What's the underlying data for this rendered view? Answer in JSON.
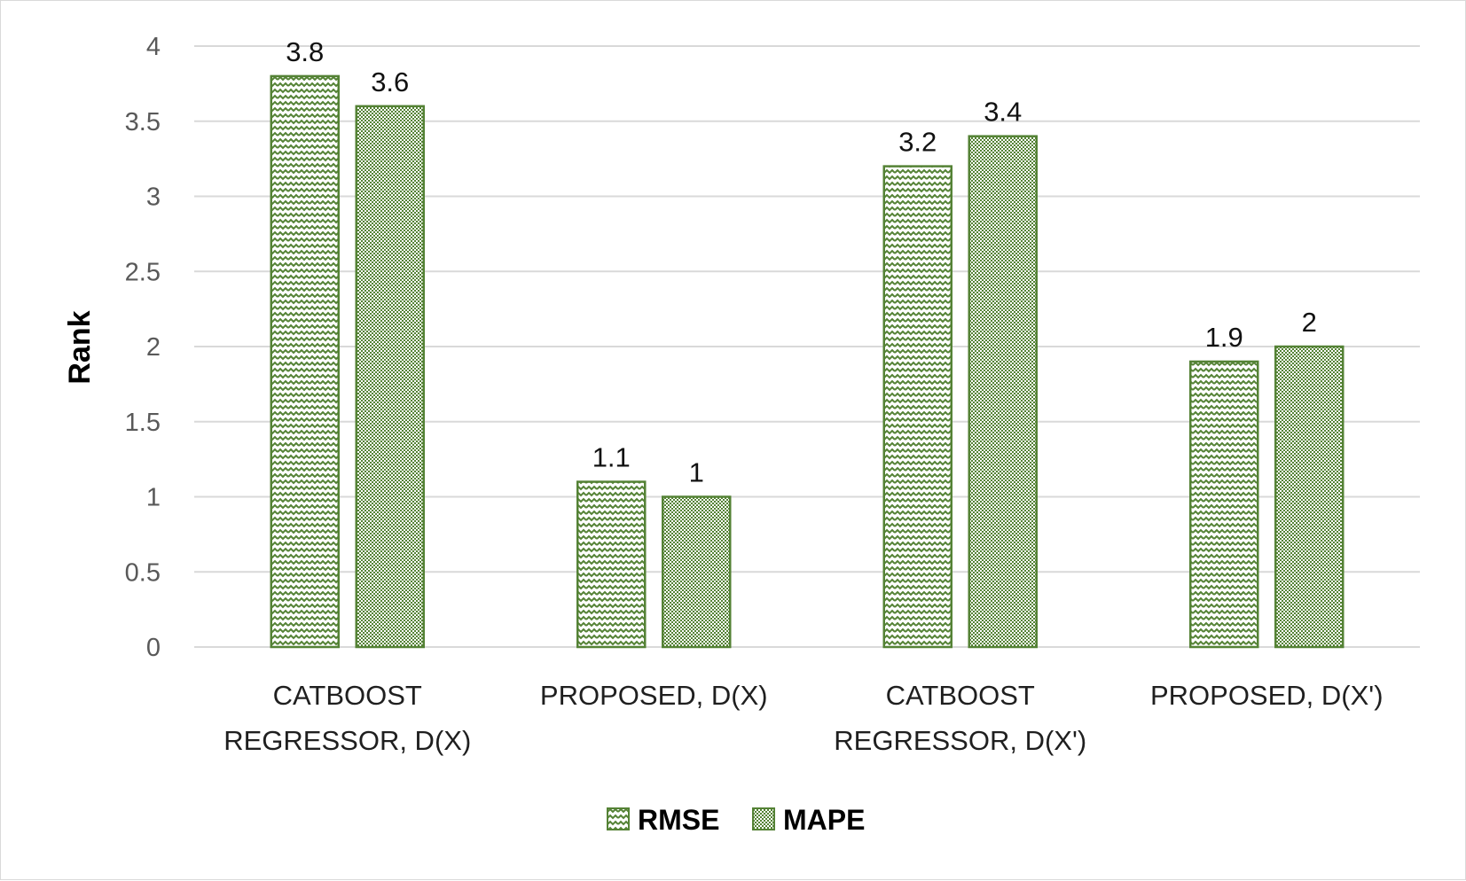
{
  "chart_data": {
    "type": "bar",
    "title": "",
    "xlabel": "",
    "ylabel": "Rank",
    "ylim": [
      0,
      4
    ],
    "yticks": [
      "0",
      "0.5",
      "1",
      "1.5",
      "2",
      "2.5",
      "3",
      "3.5",
      "4"
    ],
    "categories": [
      [
        "CATBOOST",
        "REGRESSOR, D(X)"
      ],
      [
        "PROPOSED,  D(X)"
      ],
      [
        "CATBOOST",
        "REGRESSOR, D(X')"
      ],
      [
        "PROPOSED, D(X')"
      ]
    ],
    "series": [
      {
        "name": "RMSE",
        "values": [
          3.8,
          1.1,
          3.2,
          1.9
        ],
        "labels": [
          "3.8",
          "1.1",
          "3.2",
          "1.9"
        ],
        "pattern": "zigzag",
        "color": "#548235"
      },
      {
        "name": "MAPE",
        "values": [
          3.6,
          1,
          3.4,
          2
        ],
        "labels": [
          "3.6",
          "1",
          "3.4",
          "2"
        ],
        "pattern": "checker",
        "color": "#548235"
      }
    ],
    "grid": true,
    "legend_position": "bottom"
  }
}
